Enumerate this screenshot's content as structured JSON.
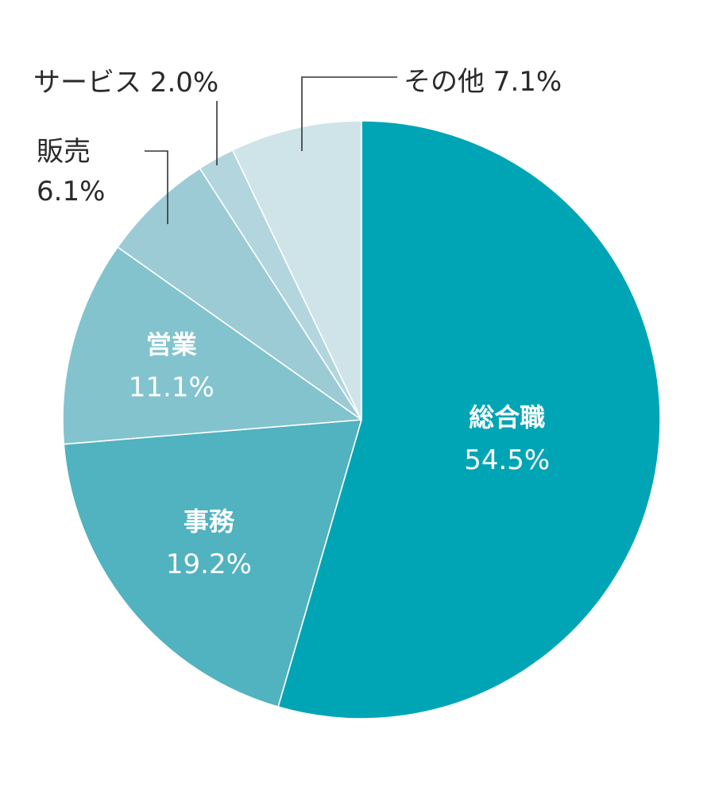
{
  "chart_data": {
    "type": "pie",
    "start": "12 o'clock",
    "direction": "clockwise",
    "slices": [
      {
        "name": "総合職",
        "value": 54.5,
        "label": "54.5%",
        "color": "#00a5b5",
        "label_position": "inside"
      },
      {
        "name": "事務",
        "value": 19.2,
        "label": "19.2%",
        "color": "#51b2c0",
        "label_position": "inside"
      },
      {
        "name": "営業",
        "value": 11.1,
        "label": "11.1%",
        "color": "#82c3ce",
        "label_position": "inside"
      },
      {
        "name": "販売",
        "value": 6.1,
        "label": "6.1%",
        "color": "#9ccbd5",
        "label_position": "outside"
      },
      {
        "name": "サービス",
        "value": 2.0,
        "label": "2.0%",
        "color": "#b3d6de",
        "label_position": "outside"
      },
      {
        "name": "その他",
        "value": 7.1,
        "label": "7.1%",
        "color": "#cfe4e9",
        "label_position": "outside"
      }
    ]
  }
}
